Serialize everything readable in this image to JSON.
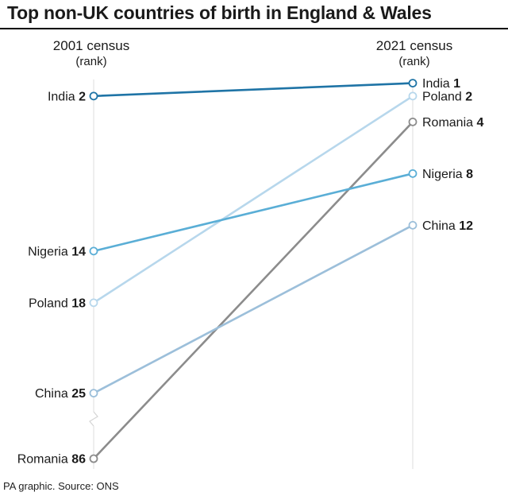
{
  "header": {
    "title": "Top non-UK countries of birth in England & Wales",
    "left_col": {
      "line1": "2001 census",
      "line2": "(rank)"
    },
    "right_col": {
      "line1": "2021 census",
      "line2": "(rank)"
    }
  },
  "source": "PA graphic. Source: ONS",
  "chart_data": {
    "type": "line",
    "title": "Top non-UK countries of birth in England & Wales",
    "categories": [
      "2001 census",
      "2021 census"
    ],
    "y_scale": "rank (reversed, axis break between 25 and 86)",
    "series": [
      {
        "name": "India",
        "values": [
          2,
          1
        ],
        "color": "#1f74a6"
      },
      {
        "name": "Poland",
        "values": [
          18,
          2
        ],
        "color": "#b7d7ec"
      },
      {
        "name": "Romania",
        "values": [
          86,
          4
        ],
        "color": "#8c8c8c"
      },
      {
        "name": "Nigeria",
        "values": [
          14,
          8
        ],
        "color": "#5aaed6"
      },
      {
        "name": "China",
        "values": [
          25,
          12
        ],
        "color": "#9cbfda"
      }
    ],
    "grid": false,
    "legend": "none (direct labels)"
  }
}
